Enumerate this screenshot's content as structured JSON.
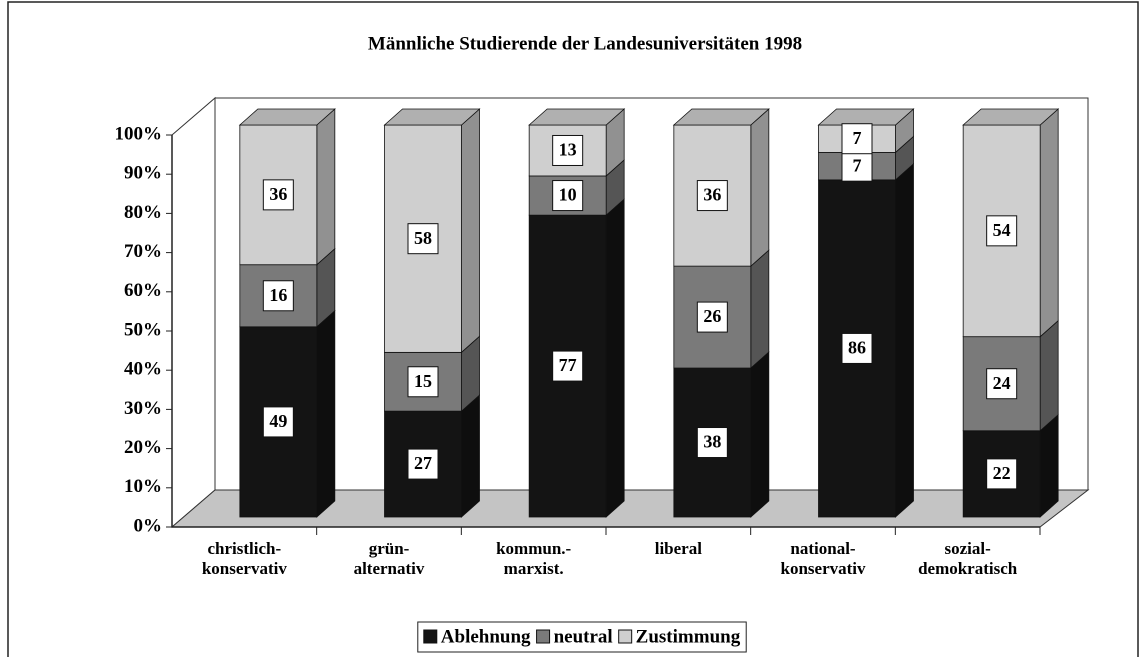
{
  "chart_data": {
    "type": "bar",
    "stack": "percent",
    "title": "Männliche Studierende der Landesuniversitäten 1998",
    "categories": [
      "christlich-\nkonservativ",
      "grün-\nalternativ",
      "kommun.-\nmarxist.",
      "liberal",
      "national-\nkonservativ",
      "sozial-\ndemokratisch"
    ],
    "series": [
      {
        "name": "Ablehnung",
        "color": "#141414",
        "values": [
          49,
          27,
          77,
          38,
          86,
          22
        ]
      },
      {
        "name": "neutral",
        "color": "#7a7a7a",
        "values": [
          16,
          15,
          10,
          26,
          7,
          24
        ]
      },
      {
        "name": "Zustimmung",
        "color": "#cfcfcf",
        "values": [
          36,
          58,
          13,
          36,
          7,
          54
        ]
      }
    ],
    "ylim": [
      0,
      100
    ],
    "yticks": [
      {
        "value": 0,
        "label": "0%"
      },
      {
        "value": 10,
        "label": "10%"
      },
      {
        "value": 20,
        "label": "20%"
      },
      {
        "value": 30,
        "label": "30%"
      },
      {
        "value": 40,
        "label": "40%"
      },
      {
        "value": 50,
        "label": "50%"
      },
      {
        "value": 60,
        "label": "60%"
      },
      {
        "value": 70,
        "label": "70%"
      },
      {
        "value": 80,
        "label": "80%"
      },
      {
        "value": 90,
        "label": "90%"
      },
      {
        "value": 100,
        "label": "100%"
      }
    ],
    "legend": "bottom"
  }
}
